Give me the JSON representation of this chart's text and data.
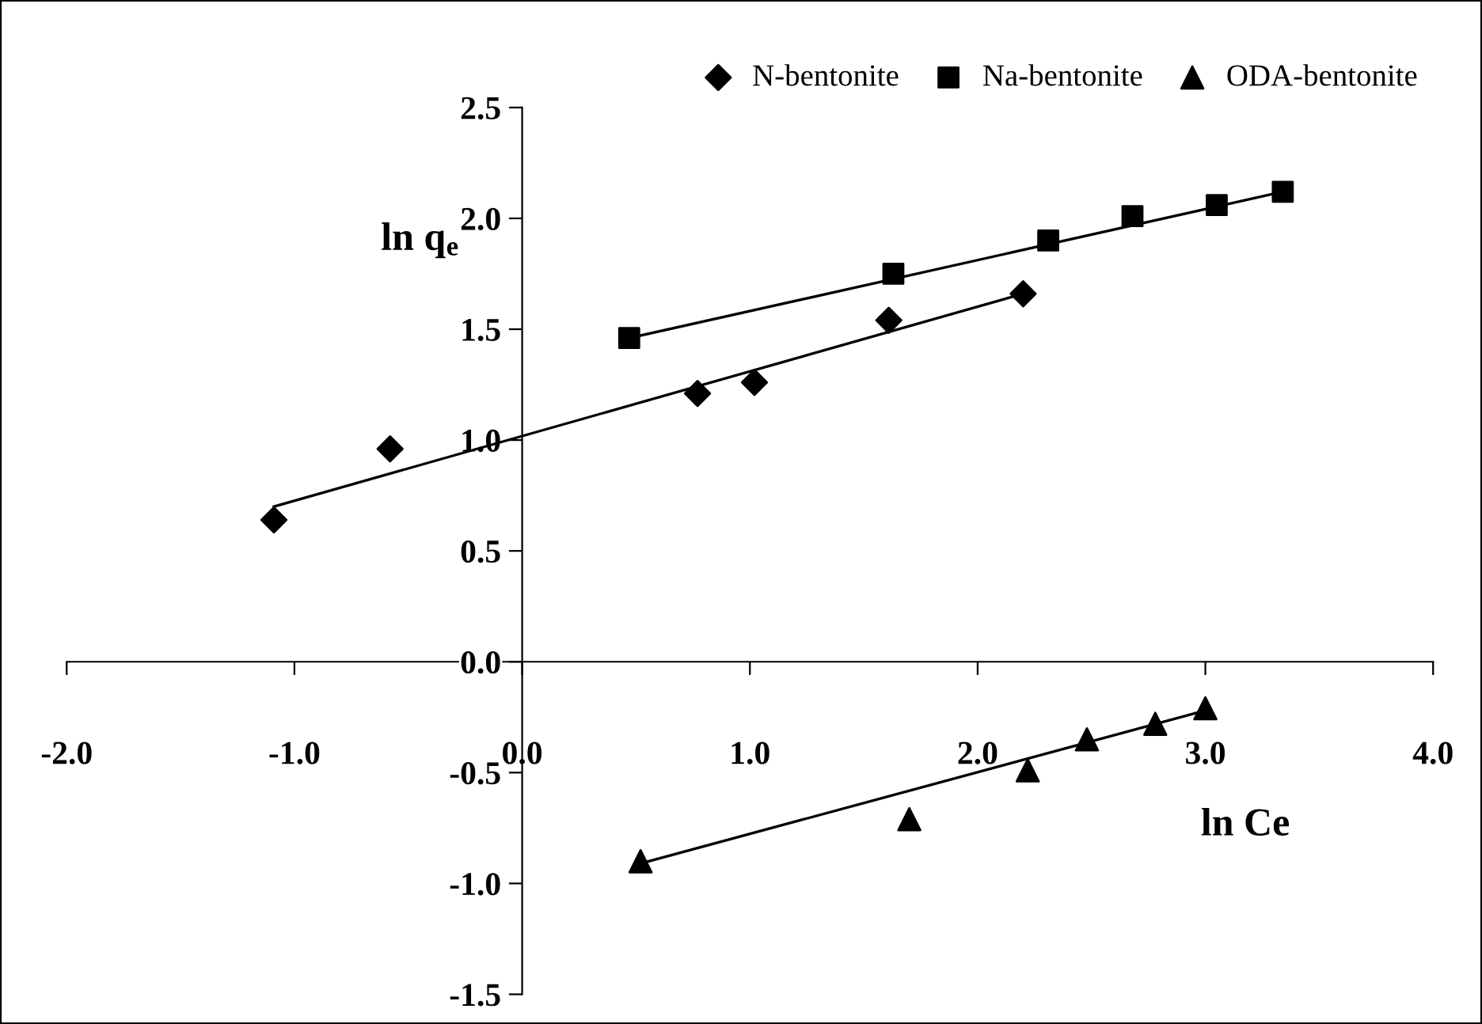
{
  "chart_data": {
    "type": "scatter",
    "xlabel": "ln Ce",
    "ylabel": "ln q$_{e}$",
    "xlim": [
      -2.0,
      4.0
    ],
    "xticks": [
      {
        "value": -2,
        "label": "-2.0"
      },
      {
        "value": -1,
        "label": "-1.0"
      },
      {
        "value": 0,
        "label": "0.0"
      },
      {
        "value": 1,
        "label": "1.0"
      },
      {
        "value": 2,
        "label": "2.0"
      },
      {
        "value": 3,
        "label": "3.0"
      },
      {
        "value": 4,
        "label": "4.0"
      }
    ],
    "ylim": [
      -1.5,
      2.5
    ],
    "yticks": [
      {
        "value": -1.5,
        "label": "-1.5"
      },
      {
        "value": -1,
        "label": "-1.0"
      },
      {
        "value": -0.5,
        "label": "-0.5"
      },
      {
        "value": 0,
        "label": "0.0"
      },
      {
        "value": 0.5,
        "label": "0.5"
      },
      {
        "value": 1,
        "label": "1.0"
      },
      {
        "value": 1.5,
        "label": "1.5"
      },
      {
        "value": 2,
        "label": "2.0"
      },
      {
        "value": 2.5,
        "label": "2.5"
      }
    ],
    "grid": false,
    "legend": "top right",
    "series": [
      {
        "name": "N-bentonite",
        "color": "#000000",
        "marker": "diamond",
        "x": [
          -1.09,
          -0.58,
          0.77,
          1.02,
          1.61,
          2.2
        ],
        "values": [
          0.64,
          0.96,
          1.21,
          1.26,
          1.54,
          1.66
        ]
      },
      {
        "name": "Na-bentonite",
        "color": "#000000",
        "marker": "square",
        "x": [
          0.47,
          1.63,
          2.31,
          2.68,
          3.05,
          3.34
        ],
        "values": [
          1.46,
          1.75,
          1.9,
          2.01,
          2.06,
          2.12
        ]
      },
      {
        "name": "ODA-bentonite",
        "color": "#000000",
        "marker": "triangle",
        "x": [
          0.52,
          1.7,
          2.22,
          2.48,
          2.78,
          3.0
        ],
        "values": [
          -0.9,
          -0.71,
          -0.49,
          -0.35,
          -0.28,
          -0.21
        ]
      },
      {
        "type": "line",
        "color": "#000000",
        "x": [
          -1.09,
          2.2
        ],
        "values": [
          0.7,
          1.66
        ]
      },
      {
        "type": "line",
        "color": "#000000",
        "x": [
          0.47,
          3.34
        ],
        "values": [
          1.46,
          2.12
        ]
      },
      {
        "type": "line",
        "color": "#000000",
        "x": [
          0.52,
          3.0
        ],
        "values": [
          -0.91,
          -0.22
        ]
      }
    ]
  }
}
